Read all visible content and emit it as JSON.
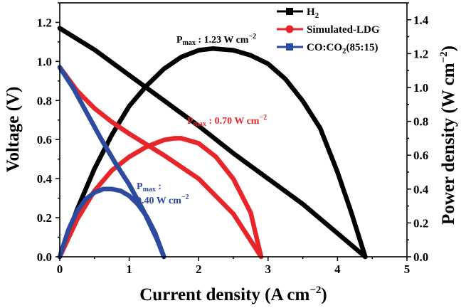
{
  "chart_data": {
    "type": "line",
    "xlabel_main": "Current density (A cm",
    "xlabel_exp": "−2",
    "xlabel_close": ")",
    "ylabel_left": "Voltage (V)",
    "ylabel_right_main": "Power density (W cm",
    "ylabel_right_exp": "−2",
    "ylabel_right_close": ")",
    "xlim": [
      0,
      5
    ],
    "ylim_left": [
      0,
      1.3
    ],
    "ylim_right": [
      0,
      1.5
    ],
    "x_ticks": [
      "0",
      "1",
      "2",
      "3",
      "4",
      "5"
    ],
    "y_left_ticks": [
      "0.0",
      "0.2",
      "0.4",
      "0.6",
      "0.8",
      "1.0",
      "1.2"
    ],
    "y_right_ticks": [
      "0.0",
      "0.2",
      "0.4",
      "0.6",
      "0.8",
      "1.0",
      "1.2",
      "1.4"
    ],
    "legend_position": "top-right",
    "series": [
      {
        "name": "H₂",
        "legend_main": "H",
        "legend_sub": "2",
        "color": "#000000",
        "marker": "square",
        "voltage": {
          "x": [
            0,
            0.5,
            1,
            1.5,
            2,
            2.5,
            3,
            3.5,
            4,
            4.4
          ],
          "y": [
            1.17,
            1.06,
            0.93,
            0.8,
            0.67,
            0.53,
            0.4,
            0.27,
            0.12,
            0.0
          ]
        },
        "power": {
          "x": [
            0,
            0.25,
            0.5,
            0.75,
            1,
            1.25,
            1.5,
            1.75,
            2,
            2.2,
            2.5,
            2.75,
            3,
            3.25,
            3.5,
            3.75,
            4,
            4.2,
            4.4
          ],
          "y": [
            0,
            0.28,
            0.52,
            0.72,
            0.89,
            1.01,
            1.11,
            1.18,
            1.22,
            1.23,
            1.22,
            1.19,
            1.14,
            1.05,
            0.92,
            0.76,
            0.5,
            0.26,
            0.0
          ]
        },
        "pmax_main": "P",
        "pmax_sub": "max",
        "pmax_value": " : 1.23 W cm",
        "pmax_exp": "−2"
      },
      {
        "name": "Simulated-LDG",
        "legend_main": "Simulated-LDG",
        "color": "#e8262a",
        "marker": "circle",
        "voltage": {
          "x": [
            0,
            0.25,
            0.5,
            0.75,
            1,
            1.5,
            2,
            2.5,
            2.9
          ],
          "y": [
            0.97,
            0.85,
            0.76,
            0.69,
            0.63,
            0.52,
            0.4,
            0.22,
            0.0
          ]
        },
        "power": {
          "x": [
            0,
            0.25,
            0.5,
            0.75,
            1,
            1.25,
            1.5,
            1.65,
            1.75,
            2,
            2.25,
            2.5,
            2.75,
            2.9
          ],
          "y": [
            0,
            0.22,
            0.39,
            0.51,
            0.59,
            0.65,
            0.69,
            0.7,
            0.7,
            0.67,
            0.59,
            0.46,
            0.26,
            0.0
          ]
        },
        "pmax_main": "P",
        "pmax_sub": "max",
        "pmax_value": " : 0.70 W cm",
        "pmax_exp": "−2"
      },
      {
        "name": "CO:CO₂(85:15)",
        "legend_main": "CO:CO",
        "legend_sub": "2",
        "legend_rest": "(85:15)",
        "color": "#2c4a9e",
        "marker": "square",
        "voltage": {
          "x": [
            0,
            0.2,
            0.4,
            0.6,
            0.8,
            1,
            1.2,
            1.4,
            1.5
          ],
          "y": [
            0.97,
            0.86,
            0.73,
            0.6,
            0.48,
            0.37,
            0.24,
            0.09,
            0.0
          ]
        },
        "power": {
          "x": [
            0,
            0.125,
            0.25,
            0.375,
            0.5,
            0.625,
            0.75,
            0.875,
            1,
            1.125,
            1.25,
            1.375,
            1.5
          ],
          "y": [
            0,
            0.16,
            0.27,
            0.34,
            0.38,
            0.4,
            0.4,
            0.39,
            0.36,
            0.31,
            0.24,
            0.14,
            0.0
          ]
        },
        "pmax_main": "P",
        "pmax_sub": "max",
        "pmax_value": " :",
        "pmax_value2": "0.40 W cm",
        "pmax_exp": "−2"
      }
    ]
  }
}
